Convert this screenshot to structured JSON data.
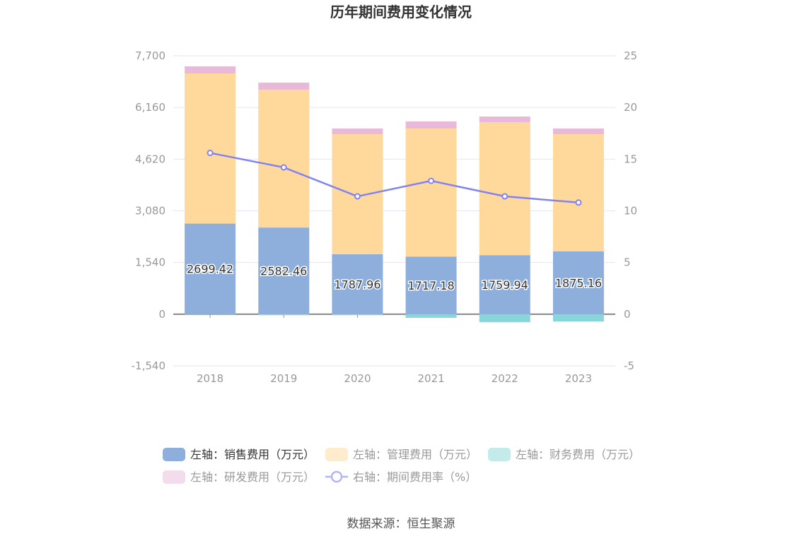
{
  "chart_data": {
    "type": "bar",
    "title": "历年期间费用变化情况",
    "categories": [
      "2018",
      "2019",
      "2020",
      "2021",
      "2022",
      "2023"
    ],
    "left_axis": {
      "ylim": [
        -1540,
        7700
      ],
      "ticks": [
        "-1,540",
        "0",
        "1,540",
        "3,080",
        "4,620",
        "6,160",
        "7,700"
      ],
      "tick_values": [
        -1540,
        0,
        1540,
        3080,
        4620,
        6160,
        7700
      ]
    },
    "right_axis": {
      "ylim": [
        -5,
        25
      ],
      "ticks": [
        "-5",
        "0",
        "5",
        "10",
        "15",
        "20",
        "25"
      ],
      "tick_values": [
        -5,
        0,
        5,
        10,
        15,
        20,
        25
      ]
    },
    "grid": true,
    "legend_placement": "bottom",
    "series": [
      {
        "name": "左轴：销售费用（万元）",
        "type": "bar",
        "axis": "left",
        "color": "#8eaedb",
        "values": [
          2699.42,
          2582.46,
          1787.96,
          1717.18,
          1759.94,
          1875.16
        ],
        "labels": [
          "2699.42",
          "2582.46",
          "1787.96",
          "1717.18",
          "1759.94",
          "1875.16"
        ]
      },
      {
        "name": "左轴：管理费用（万元）",
        "type": "bar",
        "axis": "left",
        "color": "#ffd99b",
        "values": [
          4475,
          4108,
          3577,
          3817,
          3963,
          3490
        ]
      },
      {
        "name": "左轴：财务费用（万元）",
        "type": "bar",
        "axis": "left",
        "color": "#87d7da",
        "values": [
          -10,
          -30,
          -30,
          -110,
          -240,
          -220
        ]
      },
      {
        "name": "左轴：研发费用（万元）",
        "type": "bar",
        "axis": "left",
        "color": "#e8b9d9",
        "values": [
          210,
          210,
          169,
          210,
          168,
          169
        ]
      },
      {
        "name": "右轴：期间费用率（%）",
        "type": "line",
        "axis": "right",
        "color": "#8184f0",
        "values": [
          15.6,
          14.2,
          11.4,
          12.9,
          11.4,
          10.8
        ]
      }
    ]
  },
  "source": "数据来源：恒生聚源"
}
